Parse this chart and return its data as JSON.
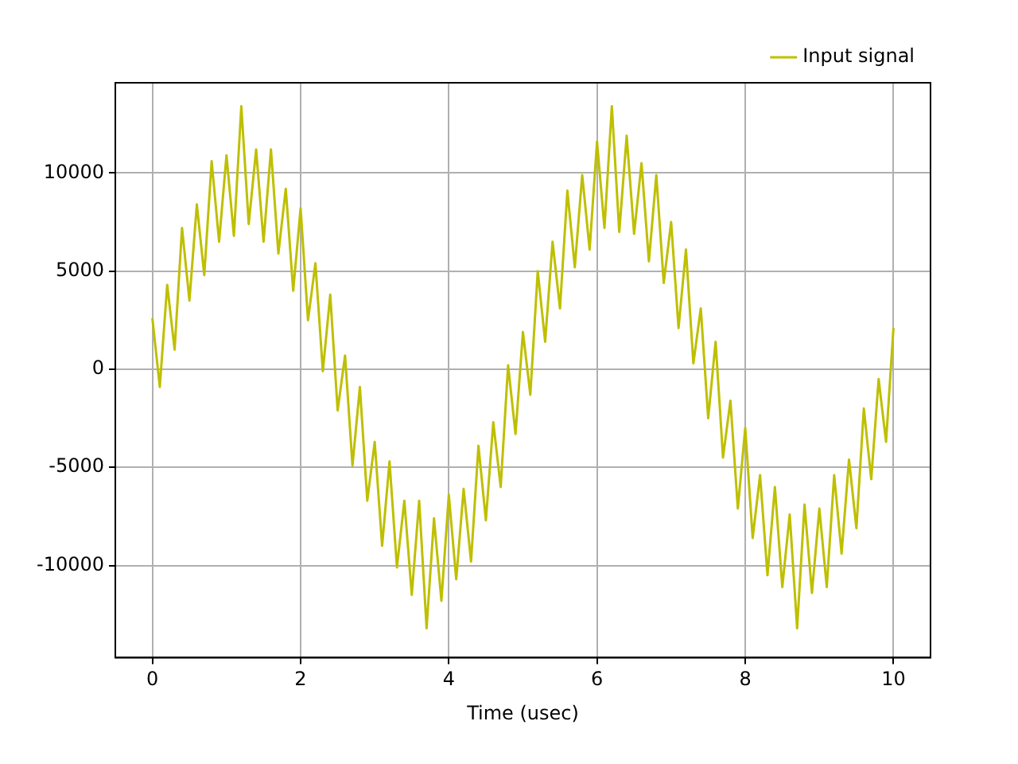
{
  "chart_data": {
    "type": "line",
    "xlabel": "Time (usec)",
    "legend": "top right",
    "grid": true,
    "marker": "none",
    "line_style": "solid",
    "xlim": [
      -0.5,
      10.5
    ],
    "xticks": [
      0,
      2,
      4,
      6,
      8,
      10
    ],
    "ylim": [
      -14700,
      14600
    ],
    "yticks": [
      -10000,
      -5000,
      0,
      5000,
      10000
    ],
    "series": [
      {
        "name": "Input signal",
        "color": "#bfbf00",
        "x": [
          0,
          0.1,
          0.2,
          0.3,
          0.4,
          0.5,
          0.6,
          0.7,
          0.8,
          0.9,
          1,
          1.1,
          1.2,
          1.3,
          1.4,
          1.5,
          1.6,
          1.7,
          1.8,
          1.9,
          2,
          2.1,
          2.2,
          2.3,
          2.4,
          2.5,
          2.6,
          2.7,
          2.8,
          2.9,
          3,
          3.1,
          3.2,
          3.3,
          3.4,
          3.5,
          3.6,
          3.7,
          3.8,
          3.9,
          4,
          4.1,
          4.2,
          4.3,
          4.4,
          4.5,
          4.6,
          4.7,
          4.8,
          4.9,
          5,
          5.1,
          5.2,
          5.3,
          5.4,
          5.5,
          5.6,
          5.7,
          5.8,
          5.9,
          6,
          6.1,
          6.2,
          6.3,
          6.4,
          6.5,
          6.6,
          6.7,
          6.8,
          6.9,
          7,
          7.1,
          7.2,
          7.3,
          7.4,
          7.5,
          7.6,
          7.7,
          7.8,
          7.9,
          8,
          8.1,
          8.2,
          8.3,
          8.4,
          8.5,
          8.6,
          8.7,
          8.8,
          8.9,
          9,
          9.1,
          9.2,
          9.3,
          9.4,
          9.5,
          9.6,
          9.7,
          9.8,
          9.9,
          10
        ],
        "values": [
          2600,
          -900,
          4300,
          1000,
          7200,
          3500,
          8400,
          4800,
          10600,
          6500,
          10900,
          6800,
          13400,
          7400,
          11200,
          6500,
          11200,
          5900,
          9200,
          4000,
          8200,
          2500,
          5400,
          -100,
          3800,
          -2100,
          700,
          -4900,
          -900,
          -6700,
          -3700,
          -9000,
          -4700,
          -10100,
          -6700,
          -11500,
          -6700,
          -13200,
          -7600,
          -11800,
          -6400,
          -10700,
          -6100,
          -9800,
          -3900,
          -7700,
          -2700,
          -6000,
          200,
          -3300,
          1900,
          -1300,
          5000,
          1400,
          6500,
          3100,
          9100,
          5200,
          9900,
          6100,
          11600,
          7200,
          13400,
          7000,
          11900,
          6900,
          10500,
          5500,
          9900,
          4400,
          7500,
          2100,
          6100,
          300,
          3100,
          -2500,
          1400,
          -4500,
          -1600,
          -7100,
          -3000,
          -8600,
          -5400,
          -10500,
          -6000,
          -11100,
          -7400,
          -13200,
          -6900,
          -11400,
          -7100,
          -11100,
          -5400,
          -9400,
          -4600,
          -8100,
          -2000,
          -5600,
          -500,
          -3700,
          2100
        ]
      }
    ]
  }
}
